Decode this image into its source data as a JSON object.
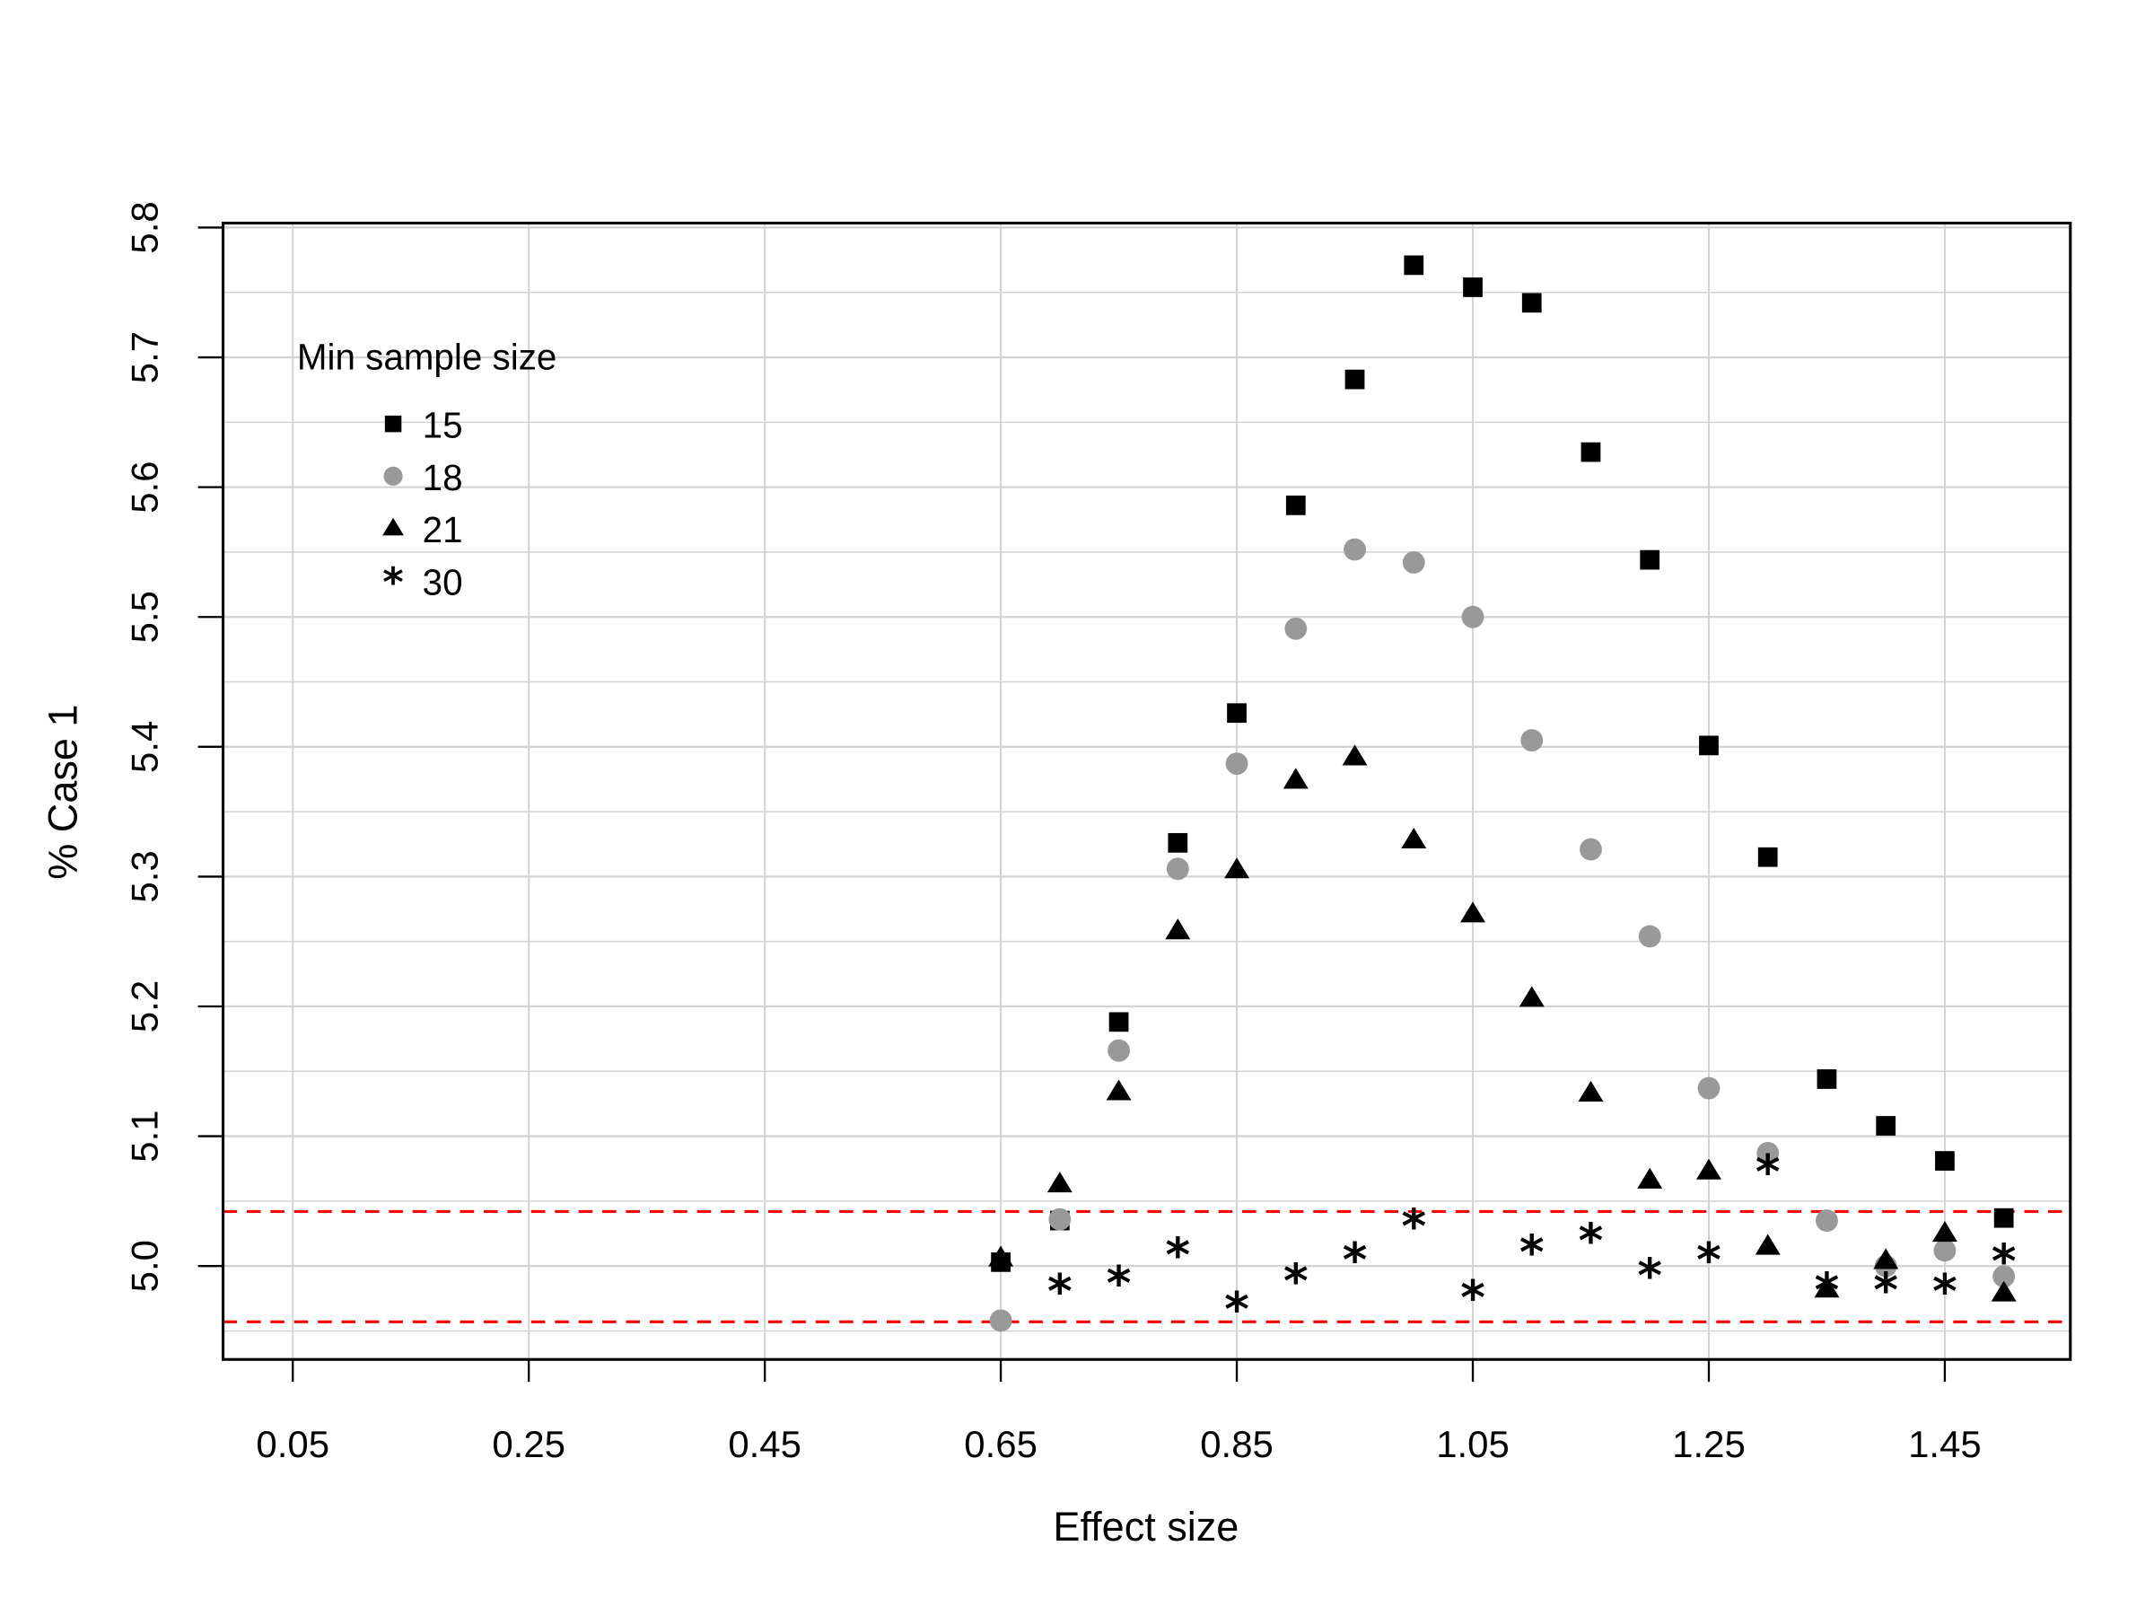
{
  "chart_data": {
    "type": "scatter",
    "title": "",
    "xlabel": "Effect size",
    "ylabel": "% Case 1",
    "xlim": [
      0.02,
      1.58
    ],
    "ylim": [
      4.93,
      5.8
    ],
    "x_ticks": [
      "0.05",
      "0.25",
      "0.45",
      "0.65",
      "0.85",
      "1.05",
      "1.25",
      "1.45"
    ],
    "y_ticks": [
      "5.0",
      "5.1",
      "5.2",
      "5.3",
      "5.4",
      "5.5",
      "5.6",
      "5.7",
      "5.8"
    ],
    "grid": true,
    "grid_color": "#d3d3d3",
    "reference_lines": [
      {
        "y": 5.042,
        "color": "#ff0000",
        "style": "dashed"
      },
      {
        "y": 4.957,
        "color": "#ff0000",
        "style": "dashed"
      }
    ],
    "legend": {
      "title": "Min sample size",
      "position": "top-left",
      "entries": [
        {
          "label": "15",
          "marker": "square",
          "color": "#000000"
        },
        {
          "label": "18",
          "marker": "circle",
          "color": "#999999"
        },
        {
          "label": "21",
          "marker": "triangle",
          "color": "#000000"
        },
        {
          "label": "30",
          "marker": "star",
          "color": "#000000"
        }
      ]
    },
    "x": [
      0.65,
      0.7,
      0.75,
      0.8,
      0.85,
      0.9,
      0.95,
      1.0,
      1.05,
      1.1,
      1.15,
      1.2,
      1.25,
      1.3,
      1.35,
      1.4,
      1.45,
      1.5
    ],
    "series": [
      {
        "name": "15",
        "marker": "square",
        "color": "#000000",
        "values": [
          5.003,
          5.035,
          5.188,
          5.326,
          5.426,
          5.586,
          5.683,
          5.771,
          5.754,
          5.742,
          5.627,
          5.544,
          5.401,
          5.315,
          5.144,
          5.108,
          5.081,
          5.037
        ]
      },
      {
        "name": "18",
        "marker": "circle",
        "color": "#999999",
        "values": [
          4.958,
          5.036,
          5.166,
          5.306,
          5.387,
          5.491,
          5.552,
          5.542,
          5.5,
          5.405,
          5.321,
          5.254,
          5.137,
          5.087,
          5.035,
          5.0,
          5.012,
          4.992
        ]
      },
      {
        "name": "21",
        "marker": "triangle",
        "color": "#000000",
        "values": [
          5.006,
          5.063,
          5.134,
          5.258,
          5.305,
          5.374,
          5.392,
          5.328,
          5.271,
          5.206,
          5.133,
          5.066,
          5.073,
          5.015,
          4.982,
          5.004,
          5.025,
          4.979
        ]
      },
      {
        "name": "30",
        "marker": "star",
        "color": "#000000",
        "values": [
          null,
          4.982,
          4.988,
          5.01,
          4.968,
          4.99,
          5.006,
          5.032,
          4.977,
          5.012,
          5.021,
          4.994,
          5.006,
          5.074,
          4.983,
          4.983,
          4.982,
          5.005
        ]
      }
    ]
  }
}
